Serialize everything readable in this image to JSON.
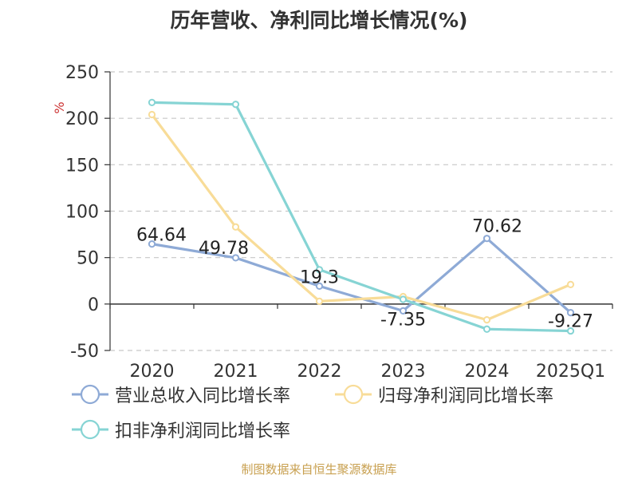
{
  "title": "历年营收、净利同比增长情况(%)",
  "footer": "制图数据来自恒生聚源数据库",
  "chart_data": {
    "type": "line",
    "title": "历年营收、净利同比增长情况(%)",
    "ylabel": "%",
    "xlabel": "",
    "categories": [
      "2020",
      "2021",
      "2022",
      "2023",
      "2024",
      "2025Q1"
    ],
    "ylim": [
      -50,
      250
    ],
    "yticks": [
      -50,
      0,
      50,
      100,
      150,
      200,
      250
    ],
    "grid": true,
    "legend_position": "bottom-left",
    "series": [
      {
        "name": "营业总收入同比增长率",
        "color": "#8eaad6",
        "values": [
          64.64,
          49.78,
          19.3,
          -7.35,
          70.62,
          -9.27
        ],
        "data_labels": [
          "64.64",
          "49.78",
          "19.3",
          "-7.35",
          "70.62",
          "-9.27"
        ]
      },
      {
        "name": "归母净利润同比增长率",
        "color": "#f8dc98",
        "values": [
          204,
          83,
          3,
          8,
          -17,
          21
        ]
      },
      {
        "name": "扣非净利润同比增长率",
        "color": "#86d4d4",
        "values": [
          217,
          215,
          37,
          5,
          -27,
          -29
        ]
      }
    ]
  }
}
